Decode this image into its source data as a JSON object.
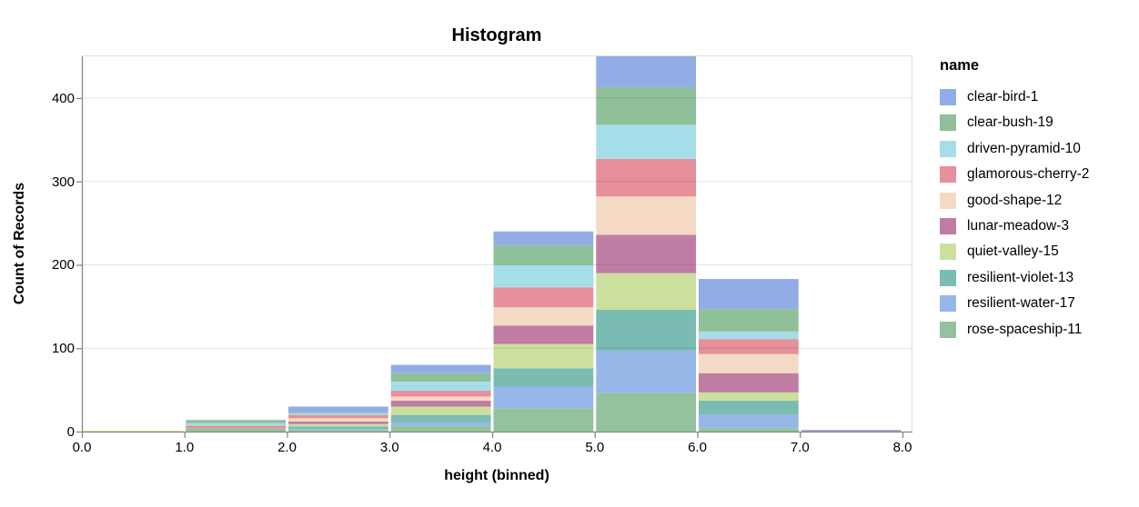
{
  "title": "Histogram",
  "chart_data": {
    "type": "bar",
    "subtype": "stacked-histogram",
    "title": "Histogram",
    "xlabel": "height (binned)",
    "ylabel": "Count of Records",
    "legend_title": "name",
    "x_bin_edges": [
      0,
      1,
      2,
      3,
      4,
      5,
      6,
      7,
      8
    ],
    "x_tick_labels": [
      "0.0",
      "1.0",
      "2.0",
      "3.0",
      "4.0",
      "5.0",
      "6.0",
      "7.0",
      "8.0"
    ],
    "y_ticks": [
      0,
      100,
      200,
      300,
      400
    ],
    "y_tick_labels": [
      "0",
      "100",
      "200",
      "300",
      "400"
    ],
    "ylim": [
      0,
      450
    ],
    "grid": true,
    "legend_position": "right",
    "stack_note": "stack order top-to-bottom inside each bar follows legend order; clear-bird-1 is the top segment",
    "bin_totals": [
      1,
      14,
      30,
      80,
      240,
      450,
      183,
      2
    ],
    "series": [
      {
        "name": "clear-bird-1",
        "color": "#92ade6",
        "values": [
          0,
          0,
          7,
          10,
          17,
          37,
          36,
          1
        ]
      },
      {
        "name": "clear-bush-19",
        "color": "#90c09a",
        "values": [
          0,
          4,
          1,
          10,
          23,
          45,
          27,
          0
        ]
      },
      {
        "name": "driven-pyramid-10",
        "color": "#a5dde9",
        "values": [
          0,
          3,
          2,
          11,
          27,
          41,
          9,
          0
        ]
      },
      {
        "name": "glamorous-cherry-2",
        "color": "#e6909a",
        "values": [
          0,
          3,
          4,
          7,
          24,
          45,
          18,
          0
        ]
      },
      {
        "name": "good-shape-12",
        "color": "#f4dac4",
        "values": [
          0,
          0,
          4,
          5,
          22,
          46,
          23,
          0
        ]
      },
      {
        "name": "lunar-meadow-3",
        "color": "#c07da3",
        "values": [
          0,
          0,
          3,
          7,
          22,
          46,
          23,
          1
        ]
      },
      {
        "name": "quiet-valley-15",
        "color": "#cce09e",
        "values": [
          1,
          0,
          3,
          10,
          29,
          44,
          10,
          0
        ]
      },
      {
        "name": "resilient-violet-13",
        "color": "#7bbcb2",
        "values": [
          0,
          0,
          3,
          9,
          22,
          49,
          17,
          0
        ]
      },
      {
        "name": "resilient-water-17",
        "color": "#97b7e9",
        "values": [
          0,
          0,
          1,
          4,
          26,
          51,
          16,
          0
        ]
      },
      {
        "name": "rose-spaceship-11",
        "color": "#93c29c",
        "values": [
          0,
          4,
          2,
          7,
          28,
          46,
          4,
          0
        ]
      }
    ],
    "style_colors": {
      "axis_line": "#888888",
      "plot_border": "#dddddd",
      "gridline": "rgba(0,0,0,0.11)",
      "text": "#000000"
    }
  }
}
